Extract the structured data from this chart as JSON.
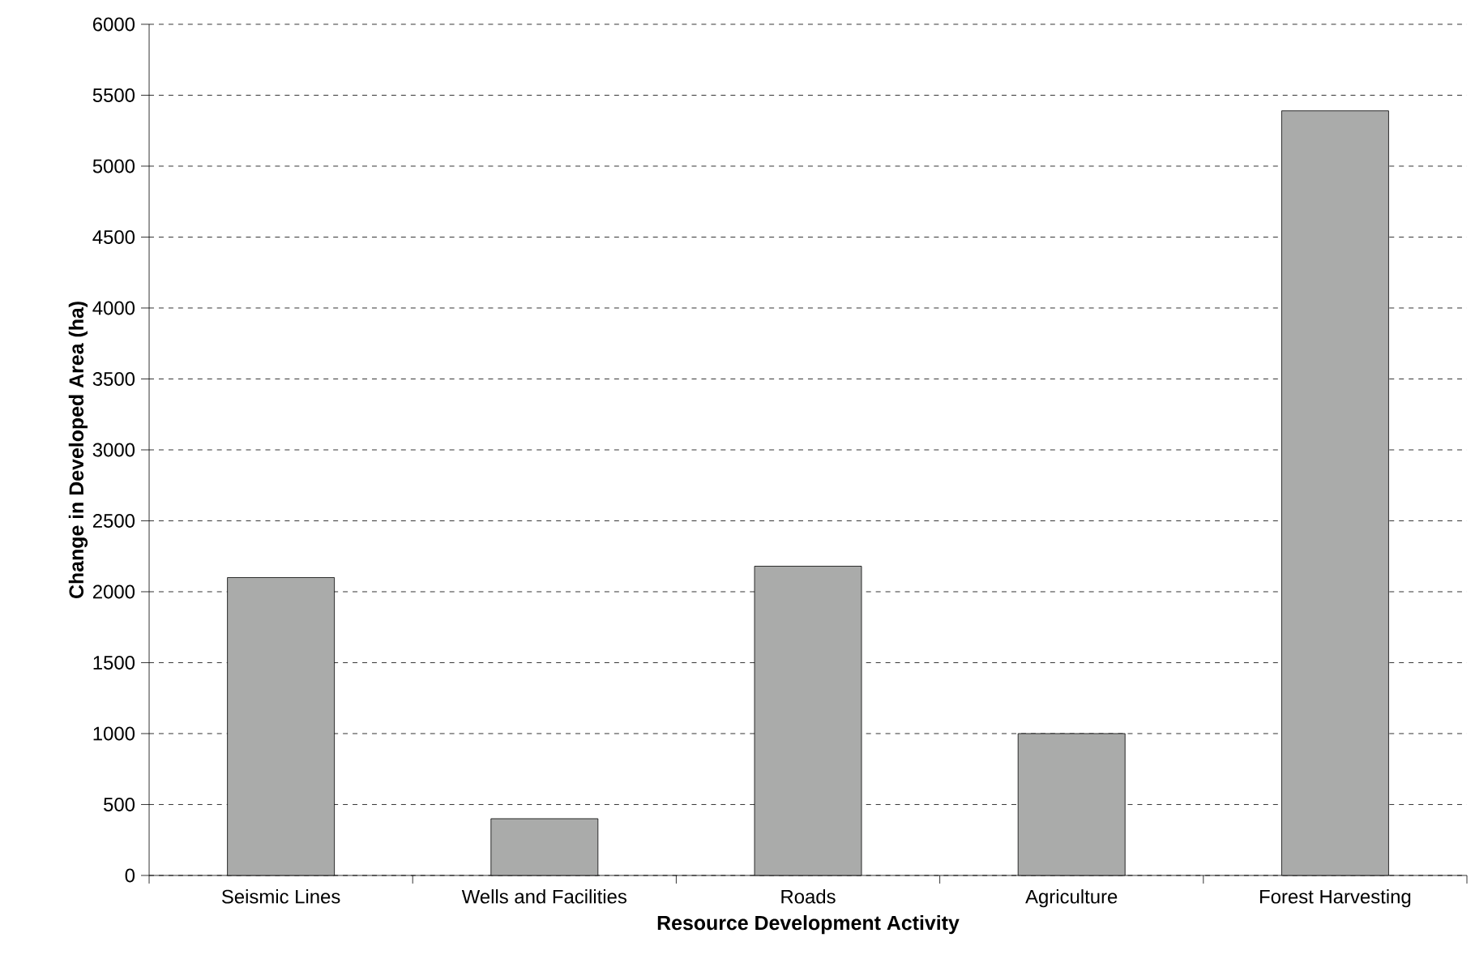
{
  "chart_data": {
    "type": "bar",
    "xlabel": "Resource Development Activity",
    "ylabel": "Change in Developed Area (ha)",
    "categories": [
      "Seismic Lines",
      "Wells and Facilities",
      "Roads",
      "Agriculture",
      "Forest Harvesting"
    ],
    "values": [
      2100,
      400,
      2180,
      1000,
      5390
    ],
    "color": "#aaabaa",
    "ylim": [
      0,
      6000
    ],
    "yticks": [
      0,
      500,
      1000,
      1500,
      2000,
      2500,
      3000,
      3500,
      4000,
      4500,
      5000,
      5500,
      6000
    ],
    "grid": "y"
  }
}
